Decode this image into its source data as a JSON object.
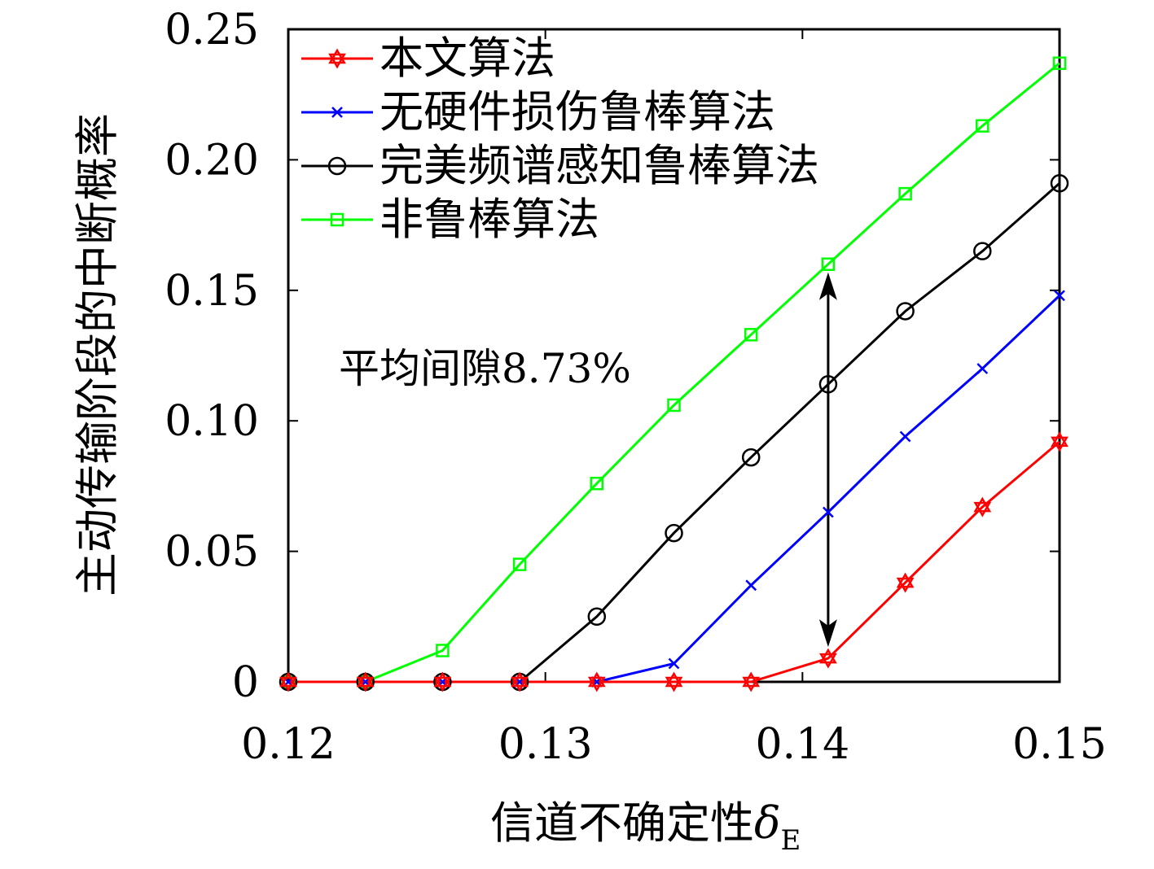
{
  "chart_data": {
    "type": "line",
    "title": "",
    "xlabel": "信道不确定性",
    "xlabel_symbol": "δ",
    "xlabel_subscript": "E",
    "ylabel": "主动传输阶段的中断概率",
    "xlim": [
      0.12,
      0.15
    ],
    "ylim": [
      0,
      0.25
    ],
    "xticks": [
      "0.12",
      "0.13",
      "0.14",
      "0.15"
    ],
    "yticks": [
      "0",
      "0.05",
      "0.10",
      "0.15",
      "0.20",
      "0.25"
    ],
    "xtick_values": [
      0.12,
      0.13,
      0.14,
      0.15
    ],
    "ytick_values": [
      0,
      0.05,
      0.1,
      0.15,
      0.2,
      0.25
    ],
    "grid": false,
    "legend_position": "top-left",
    "x": [
      0.12,
      0.123,
      0.126,
      0.129,
      0.132,
      0.135,
      0.138,
      0.141,
      0.144,
      0.147,
      0.15
    ],
    "series": [
      {
        "name": "本文算法",
        "color": "#ff0000",
        "marker": "hexagram",
        "values": [
          0,
          0,
          0,
          0,
          0,
          0,
          0,
          0.009,
          0.038,
          0.067,
          0.092
        ]
      },
      {
        "name": "无硬件损伤鲁棒算法",
        "color": "#0000ff",
        "marker": "x",
        "values": [
          0,
          0,
          0,
          0,
          0,
          0.007,
          0.037,
          0.065,
          0.094,
          0.12,
          0.148
        ]
      },
      {
        "name": "完美频谱感知鲁棒算法",
        "color": "#000000",
        "marker": "circle",
        "values": [
          0,
          0,
          0,
          0,
          0.025,
          0.057,
          0.086,
          0.114,
          0.142,
          0.165,
          0.191
        ]
      },
      {
        "name": "非鲁棒算法",
        "color": "#00ff00",
        "marker": "square",
        "values": [
          0,
          0,
          0.012,
          0.045,
          0.076,
          0.106,
          0.133,
          0.16,
          0.187,
          0.213,
          0.237
        ]
      }
    ],
    "annotation": {
      "text": "平均间隙8.73%",
      "arrow_x": 0.141,
      "arrow_from": 0.009,
      "arrow_to": 0.16
    }
  }
}
